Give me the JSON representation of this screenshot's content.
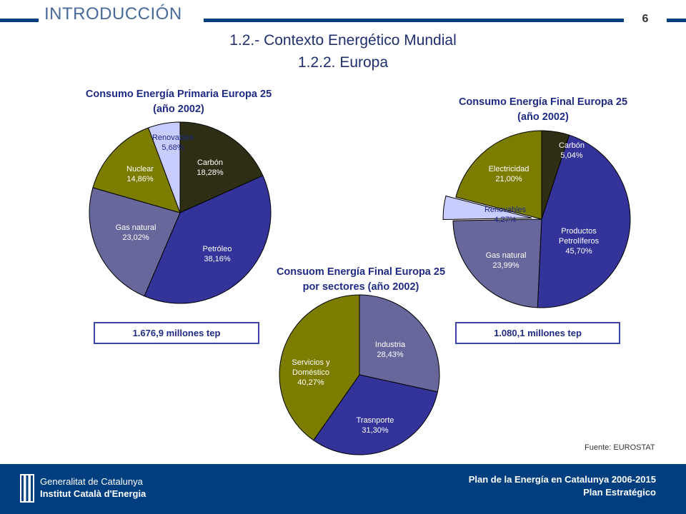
{
  "header": {
    "section_title": "INTRODUCCIÓN",
    "page_number": "6",
    "title_line1": "1.2.- Contexto Energético Mundial",
    "title_line2": "1.2.2. Europa"
  },
  "colors": {
    "brand_blue": "#003F7F",
    "carbon": "#2E2E14",
    "petroleo": "#33339A",
    "gas_natural": "#67679B",
    "nuclear": "#7C7C00",
    "renovables": "#C9CCFF",
    "electricidad": "#7C7C00",
    "industria": "#67679B",
    "transporte": "#33339A",
    "servicios": "#7C7C00"
  },
  "chart_data": [
    {
      "type": "pie",
      "title": "Consumo Energía Primaria Europa 25",
      "subtitle": "(año 2002)",
      "total_label": "1.676,9 millones tep",
      "slices": [
        {
          "label": "Carbón",
          "value_label": "18,28%",
          "value": 18.28,
          "color_key": "carbon"
        },
        {
          "label": "Petróleo",
          "value_label": "38,16%",
          "value": 38.16,
          "color_key": "petroleo"
        },
        {
          "label": "Gas natural",
          "value_label": "23,02%",
          "value": 23.02,
          "color_key": "gas_natural"
        },
        {
          "label": "Nuclear",
          "value_label": "14,86%",
          "value": 14.86,
          "color_key": "nuclear"
        },
        {
          "label": "Renovables",
          "value_label": "5,68%",
          "value": 5.68,
          "color_key": "renovables"
        }
      ]
    },
    {
      "type": "pie",
      "title": "Consumo Energía Final Europa 25",
      "subtitle": "(año 2002)",
      "total_label": "1.080,1 millones tep",
      "slices": [
        {
          "label": "Carbón",
          "value_label": "5,04%",
          "value": 5.04,
          "color_key": "carbon"
        },
        {
          "label": "Productos Petrolíferos",
          "value_label": "45,70%",
          "value": 45.7,
          "color_key": "petroleo"
        },
        {
          "label": "Gas natural",
          "value_label": "23,99%",
          "value": 23.99,
          "color_key": "gas_natural"
        },
        {
          "label": "Renovables",
          "value_label": "4,27%",
          "value": 4.27,
          "color_key": "renovables"
        },
        {
          "label": "Electricidad",
          "value_label": "21,00%",
          "value": 21.0,
          "color_key": "electricidad"
        }
      ]
    },
    {
      "type": "pie",
      "title": "Consuom Energía Final Europa 25",
      "subtitle": "por sectores (año 2002)",
      "slices": [
        {
          "label": "Industria",
          "value_label": "28,43%",
          "value": 28.43,
          "color_key": "industria"
        },
        {
          "label": "Trasnporte",
          "value_label": "31,30%",
          "value": 31.3,
          "color_key": "transporte"
        },
        {
          "label": "Servicios y Doméstico",
          "value_label": "40,27%",
          "value": 40.27,
          "color_key": "servicios"
        }
      ]
    }
  ],
  "source": "Fuente: EUROSTAT",
  "footer": {
    "org_line1": "Generalitat de Catalunya",
    "org_line2": "Institut Català d'Energia",
    "plan_line1": "Plan de la Energía en Catalunya 2006-2015",
    "plan_line2": "Plan Estratégico"
  }
}
